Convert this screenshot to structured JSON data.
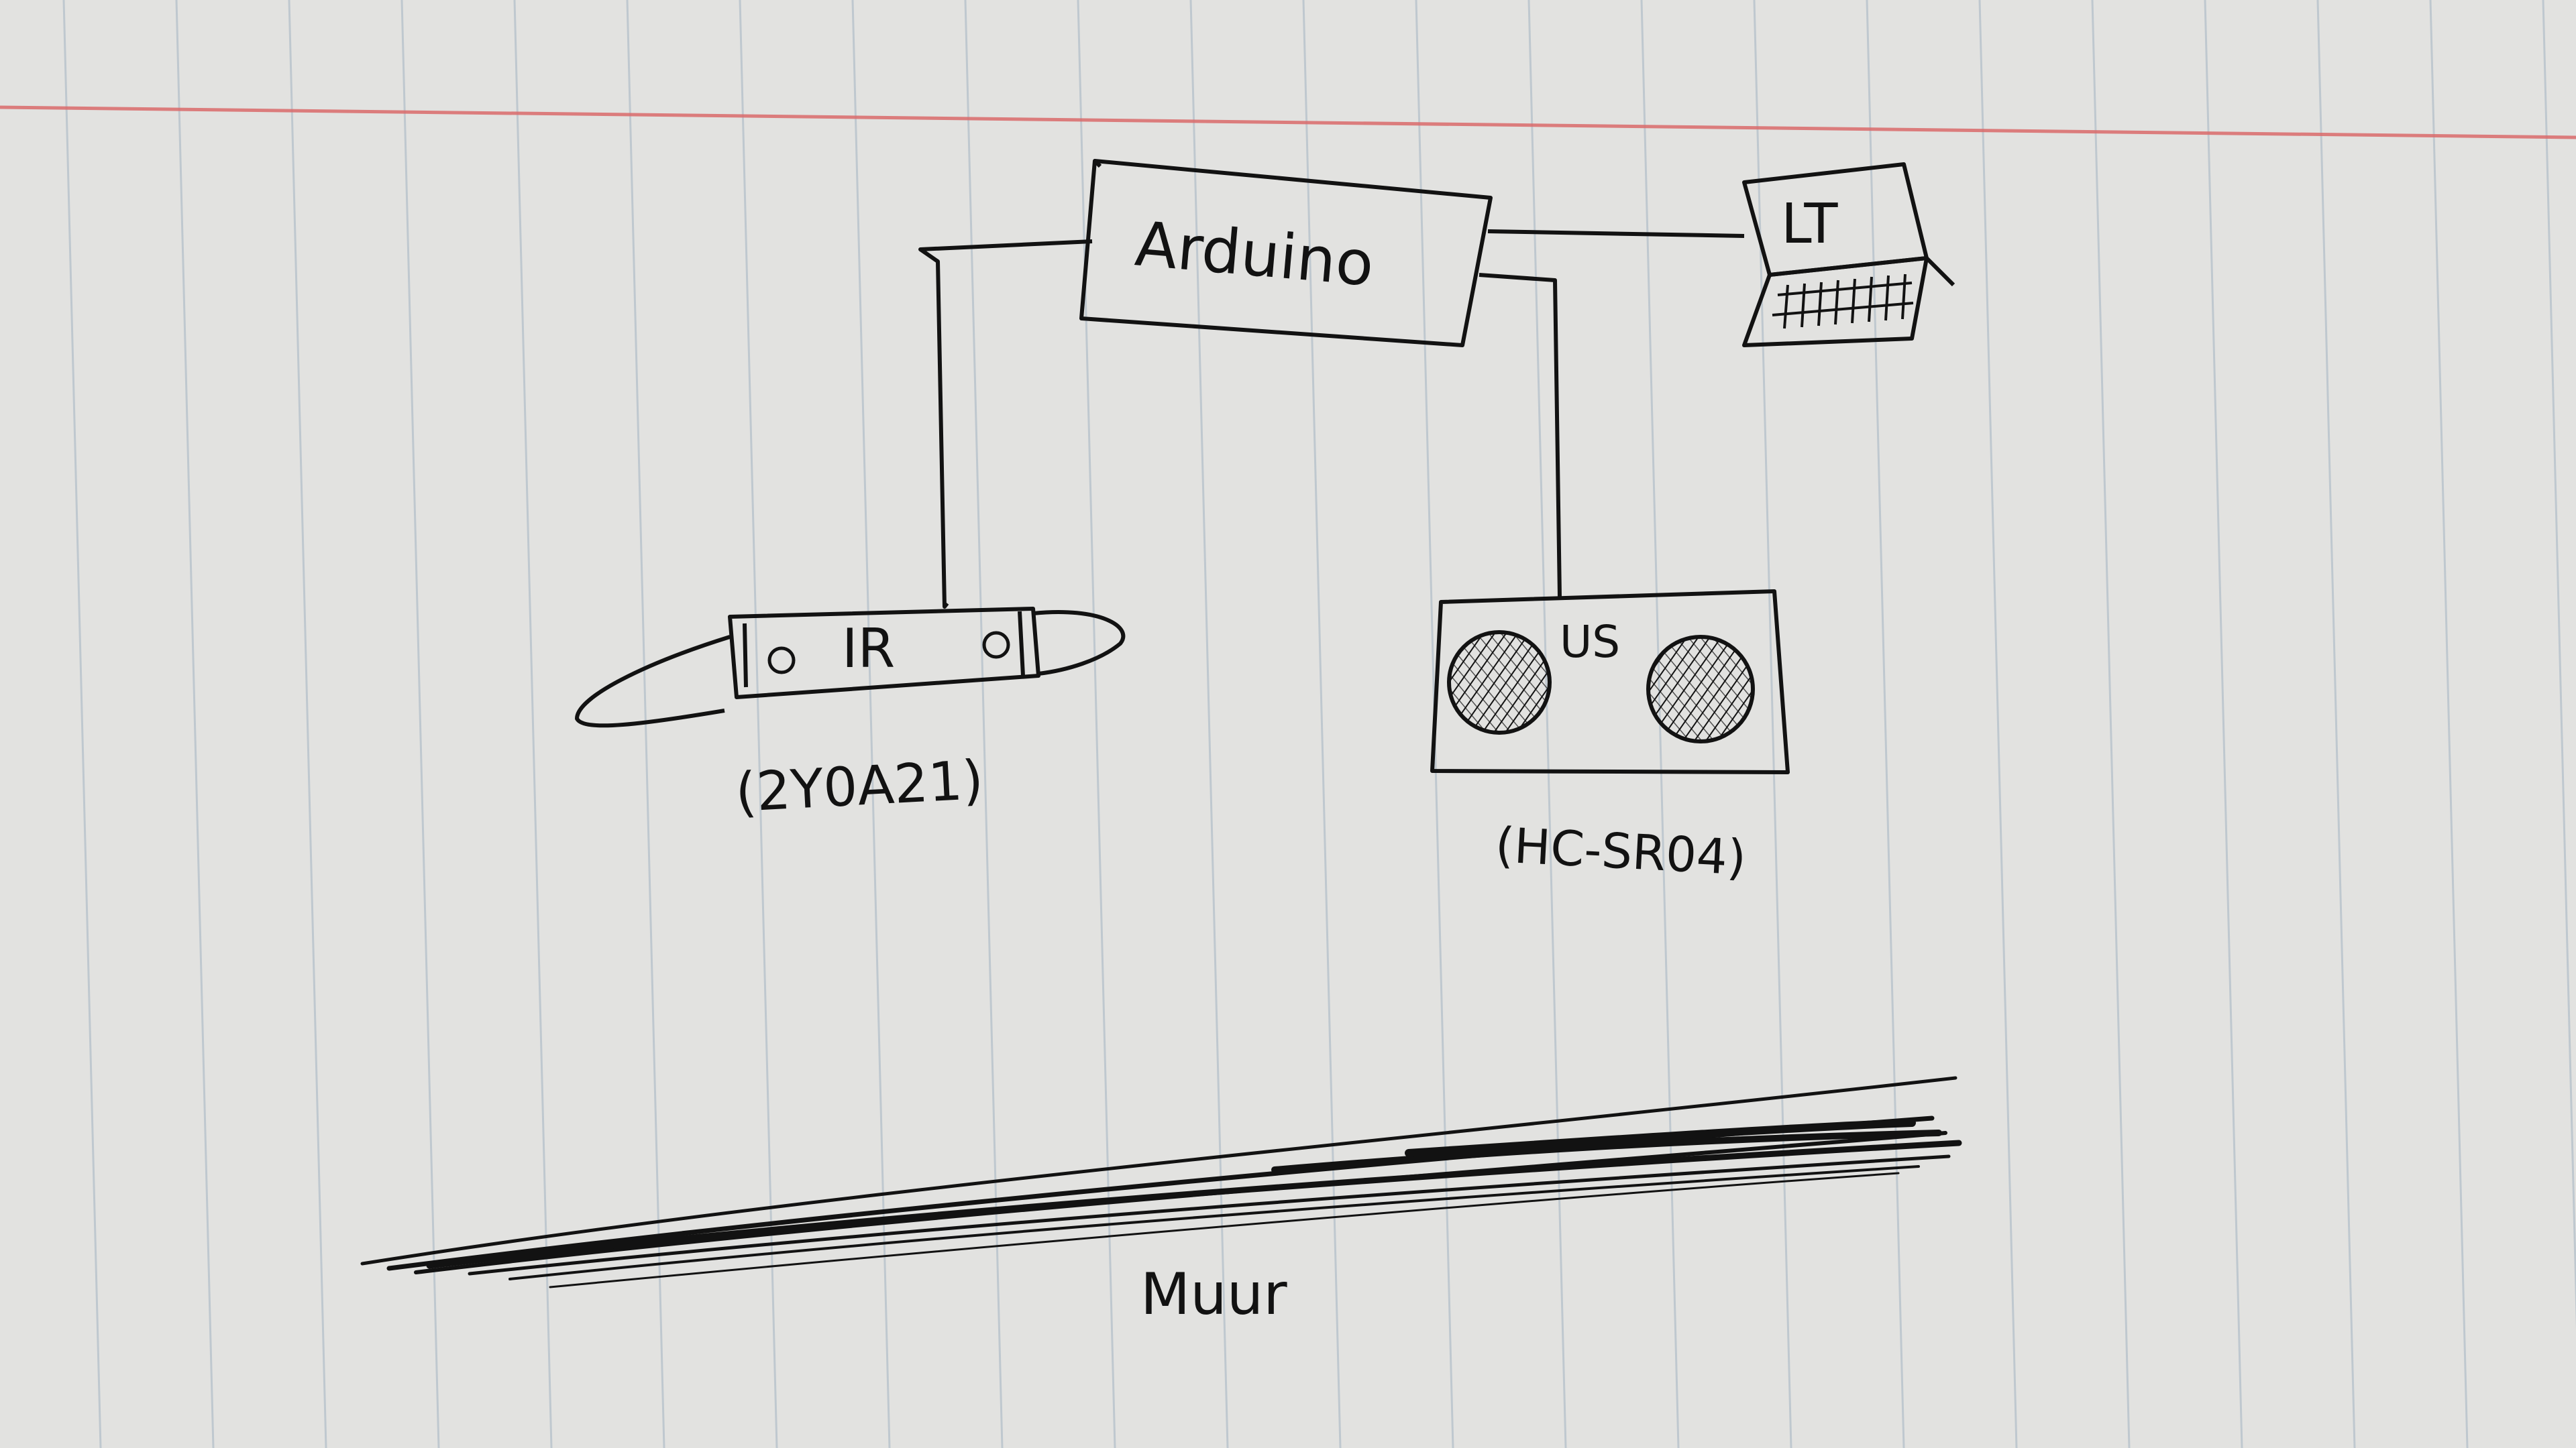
{
  "paper": {
    "background": "#dfdfdd",
    "rule_color": "#b7c2cc",
    "margin_color": "#d96a6a"
  },
  "ink_color": "#121212",
  "nodes": {
    "arduino": {
      "label": "Arduino"
    },
    "laptop": {
      "label": "LT"
    },
    "ir_sensor": {
      "label": "IR",
      "model": "(2Y0A21)"
    },
    "ultrasonic_sensor": {
      "label": "US",
      "model": "(HC-SR04)"
    },
    "wall": {
      "label": "Muur"
    }
  },
  "connections": [
    {
      "from": "arduino",
      "to": "laptop"
    },
    {
      "from": "arduino",
      "to": "ir_sensor"
    },
    {
      "from": "arduino",
      "to": "ultrasonic_sensor"
    }
  ]
}
